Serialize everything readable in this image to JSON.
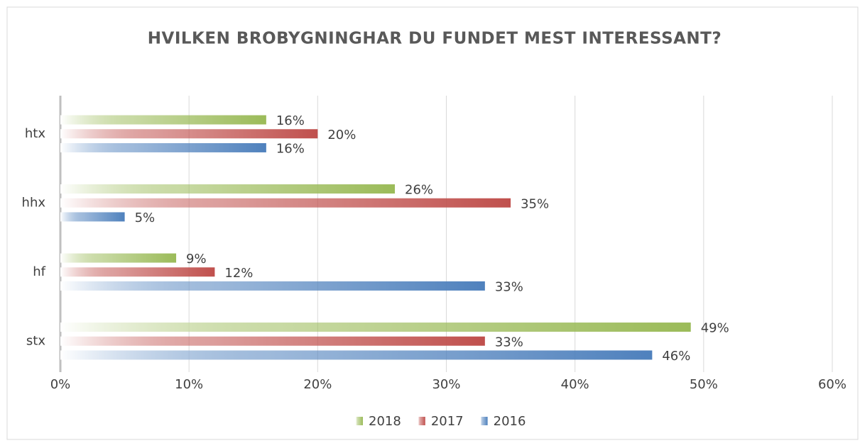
{
  "chart_data": {
    "type": "bar",
    "orientation": "horizontal",
    "title": "HVILKEN BROBYGNINGHAR DU FUNDET MEST INTERESSANT?",
    "categories": [
      "htx",
      "hhx",
      "hf",
      "stx"
    ],
    "series": [
      {
        "name": "2018",
        "color": "#9bbb59",
        "values": [
          16,
          26,
          9,
          49
        ],
        "value_labels": [
          "16%",
          "26%",
          "9%",
          "49%"
        ]
      },
      {
        "name": "2017",
        "color": "#c0504d",
        "values": [
          20,
          35,
          12,
          33
        ],
        "value_labels": [
          "20%",
          "35%",
          "12%",
          "33%"
        ]
      },
      {
        "name": "2016",
        "color": "#4f81bd",
        "values": [
          16,
          5,
          33,
          46
        ],
        "value_labels": [
          "16%",
          "5%",
          "33%",
          "46%"
        ]
      }
    ],
    "xlim": [
      0,
      60
    ],
    "xticks": [
      {
        "value": 0,
        "label": "0%"
      },
      {
        "value": 10,
        "label": "10%"
      },
      {
        "value": 20,
        "label": "20%"
      },
      {
        "value": 30,
        "label": "30%"
      },
      {
        "value": 40,
        "label": "40%"
      },
      {
        "value": 50,
        "label": "50%"
      },
      {
        "value": 60,
        "label": "60%"
      }
    ],
    "grid": true,
    "legend": "bottom"
  }
}
